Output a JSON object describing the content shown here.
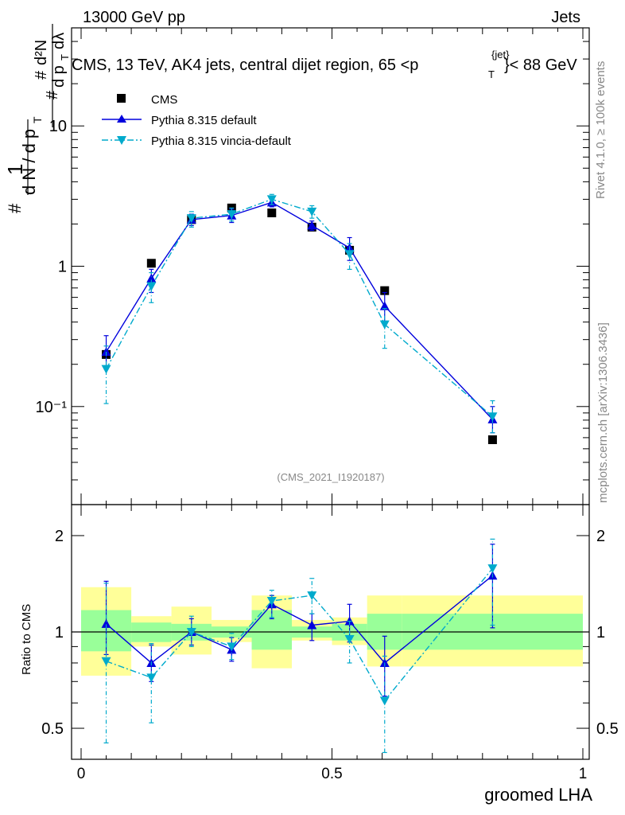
{
  "header": {
    "left": "13000 GeV pp",
    "right": "Jets"
  },
  "plot_title": {
    "main": "CMS, 13 TeV, AK4 jets, central dijet region, 65 <p",
    "sub": "T",
    "sup": "{jet}",
    "tail": "}< 88 GeV"
  },
  "side_text": {
    "rivet": "Rivet 4.1.0, ≥ 100k events",
    "mcplots": "mcplots.cern.ch [arXiv:1306.3436]"
  },
  "analysis_id": "(CMS_2021_I1920187)",
  "colors": {
    "cms": "#000000",
    "pythia_default": "#0000dd",
    "pythia_vincia": "#00aacc",
    "band_inner": "#99ff99",
    "band_outer": "#ffff99"
  },
  "chart_data": [
    {
      "type": "line",
      "panel": "main",
      "title": "CMS, 13 TeV, AK4 jets, central dijet region, 65 < pT < 88 GeV",
      "xlabel": "groomed LHA",
      "ylabel": "1/dN/dpT  d²N/dpT dλ",
      "yscale": "log",
      "xlim": [
        0,
        1
      ],
      "ylim": [
        0.02,
        50
      ],
      "y_tick_labels": [
        "10⁻¹",
        "1",
        "10"
      ],
      "x": [
        0.05,
        0.14,
        0.22,
        0.3,
        0.38,
        0.46,
        0.535,
        0.605,
        0.82
      ],
      "xerr_edges": [
        0,
        0.1,
        0.18,
        0.26,
        0.34,
        0.42,
        0.5,
        0.57,
        0.64,
        1.0
      ],
      "series": [
        {
          "name": "CMS",
          "marker": "square",
          "values": [
            0.235,
            1.05,
            2.15,
            2.6,
            2.4,
            1.9,
            1.3,
            0.67,
            0.058
          ]
        },
        {
          "name": "Pythia 8.315 default",
          "marker": "triangle-up",
          "line": "solid",
          "values": [
            0.245,
            0.82,
            2.15,
            2.3,
            2.85,
            1.95,
            1.35,
            0.52,
            0.081
          ],
          "err_lo": [
            0.185,
            0.65,
            1.95,
            2.05,
            2.65,
            1.8,
            1.1,
            0.4,
            0.065
          ],
          "err_hi": [
            0.32,
            0.95,
            2.35,
            2.55,
            3.05,
            2.1,
            1.6,
            0.65,
            0.1
          ]
        },
        {
          "name": "Pythia 8.315 vincia-default",
          "marker": "triangle-down",
          "line": "dashdot",
          "values": [
            0.185,
            0.72,
            2.2,
            2.35,
            3.0,
            2.45,
            1.22,
            0.385,
            0.085
          ],
          "err_lo": [
            0.105,
            0.55,
            1.9,
            2.1,
            2.75,
            2.2,
            0.95,
            0.26,
            0.065
          ],
          "err_hi": [
            0.27,
            0.9,
            2.45,
            2.6,
            3.25,
            2.7,
            1.45,
            0.5,
            0.11
          ]
        }
      ]
    },
    {
      "type": "line",
      "panel": "ratio",
      "xlabel": "groomed LHA",
      "ylabel": "Ratio to CMS",
      "yscale": "log",
      "xlim": [
        0,
        1
      ],
      "ylim": [
        0.4,
        2.5
      ],
      "x_tick_labels": [
        "0",
        "0.5",
        "1"
      ],
      "y_tick_labels": [
        "0.5",
        "1",
        "2"
      ],
      "bins": [
        [
          0,
          0.1
        ],
        [
          0.1,
          0.18
        ],
        [
          0.18,
          0.26
        ],
        [
          0.26,
          0.34
        ],
        [
          0.34,
          0.42
        ],
        [
          0.42,
          0.5
        ],
        [
          0.5,
          0.57
        ],
        [
          0.57,
          0.64
        ],
        [
          0.64,
          1.0
        ]
      ],
      "band_inner": [
        [
          0.87,
          1.17
        ],
        [
          0.93,
          1.07
        ],
        [
          0.94,
          1.06
        ],
        [
          0.96,
          1.04
        ],
        [
          0.88,
          1.17
        ],
        [
          0.96,
          1.04
        ],
        [
          0.94,
          1.06
        ],
        [
          0.88,
          1.14
        ],
        [
          0.88,
          1.14
        ]
      ],
      "band_outer": [
        [
          0.73,
          1.38
        ],
        [
          0.9,
          1.12
        ],
        [
          0.85,
          1.2
        ],
        [
          0.93,
          1.09
        ],
        [
          0.77,
          1.3
        ],
        [
          0.94,
          1.09
        ],
        [
          0.91,
          1.11
        ],
        [
          0.78,
          1.3
        ],
        [
          0.78,
          1.3
        ]
      ],
      "x": [
        0.05,
        0.14,
        0.22,
        0.3,
        0.38,
        0.46,
        0.535,
        0.605,
        0.82
      ],
      "series": [
        {
          "name": "Pythia 8.315 default",
          "marker": "triangle-up",
          "line": "solid",
          "values": [
            1.06,
            0.8,
            1.0,
            0.88,
            1.22,
            1.05,
            1.08,
            0.8,
            1.5
          ],
          "err_lo": [
            0.85,
            0.7,
            0.91,
            0.81,
            1.1,
            0.94,
            0.93,
            0.63,
            1.03
          ],
          "err_hi": [
            1.44,
            0.91,
            1.1,
            0.96,
            1.3,
            1.14,
            1.22,
            0.97,
            1.88
          ]
        },
        {
          "name": "Pythia 8.315 vincia-default",
          "marker": "triangle-down",
          "line": "dashdot",
          "values": [
            0.81,
            0.72,
            1.0,
            0.9,
            1.25,
            1.3,
            0.95,
            0.61,
            1.58
          ],
          "err_lo": [
            0.45,
            0.52,
            0.9,
            0.82,
            1.11,
            1.14,
            0.8,
            0.42,
            1.05
          ],
          "err_hi": [
            1.42,
            0.92,
            1.12,
            0.99,
            1.35,
            1.47,
            1.08,
            0.84,
            1.95
          ]
        }
      ]
    }
  ]
}
